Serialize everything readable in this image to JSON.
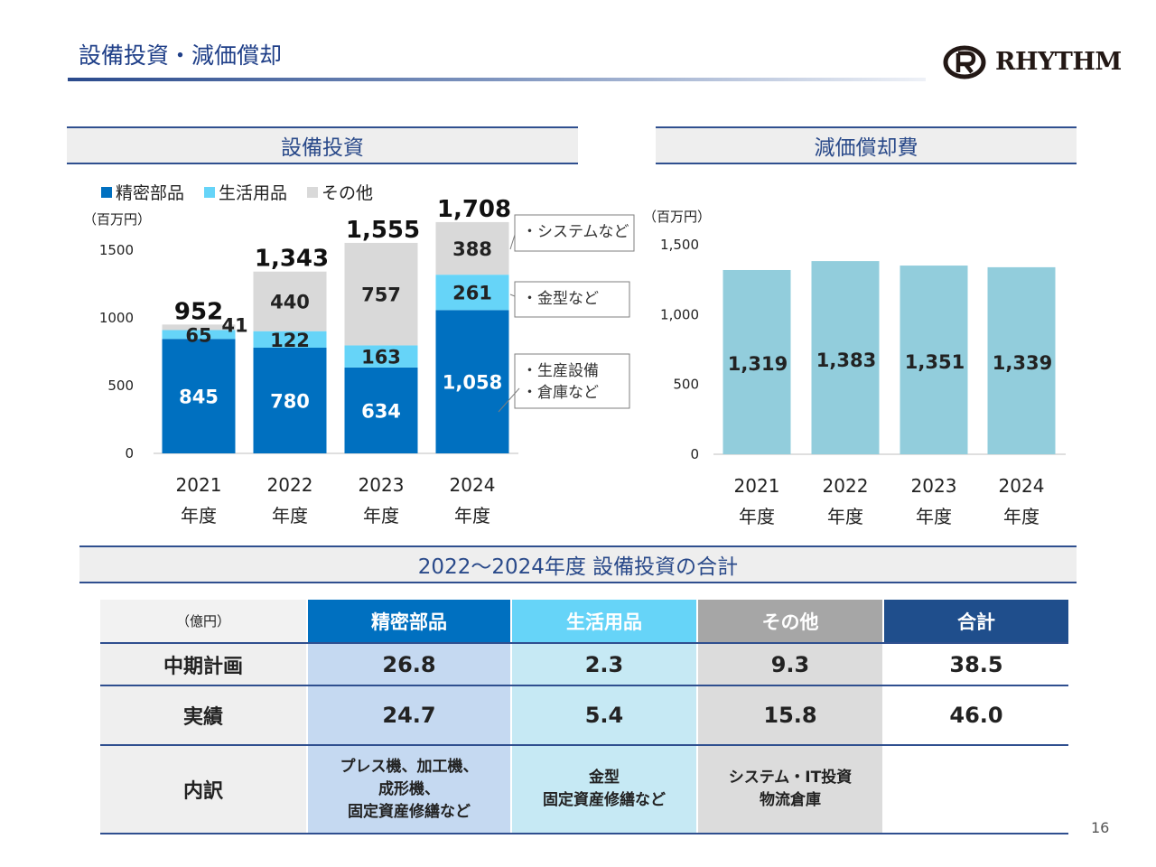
{
  "page": {
    "title": "設備投資・減価償却",
    "logo_text": "RHYTHM",
    "page_number": "16"
  },
  "capex_section": {
    "header": "設備投資",
    "unit": "（百万円）",
    "annotations": [
      "・システムなど",
      "・金型など",
      "・生産設備\n・倉庫など"
    ]
  },
  "depr_section": {
    "header": "減価償却費",
    "unit": "（百万円）"
  },
  "chart_data": [
    {
      "type": "bar",
      "stacked": true,
      "title": "設備投資",
      "ylabel": "（百万円）",
      "categories": [
        "2021\n年度",
        "2022\n年度",
        "2023\n年度",
        "2024\n年度"
      ],
      "series": [
        {
          "name": "精密部品",
          "values": [
            845,
            780,
            634,
            1058
          ],
          "labels": [
            "845",
            "780",
            "634",
            "1,058"
          ],
          "color": "#0070c0"
        },
        {
          "name": "生活用品",
          "values": [
            65,
            122,
            163,
            261
          ],
          "labels": [
            "65",
            "122",
            "163",
            "261"
          ],
          "color": "#66d4f8"
        },
        {
          "name": "その他",
          "values": [
            41,
            440,
            757,
            388
          ],
          "labels": [
            "41",
            "440",
            "757",
            "388"
          ],
          "color": "#d9d9d9"
        }
      ],
      "totals": [
        "952",
        "1,343",
        "1,555",
        "1,708"
      ],
      "ylim": [
        0,
        1500
      ],
      "yticks": [
        0,
        500,
        1000,
        1500
      ],
      "ytick_labels": [
        "0",
        "500",
        "1000",
        "1500"
      ],
      "legend": "top-left"
    },
    {
      "type": "bar",
      "title": "減価償却費",
      "ylabel": "（百万円）",
      "categories": [
        "2021\n年度",
        "2022\n年度",
        "2023\n年度",
        "2024\n年度"
      ],
      "values": [
        1319,
        1383,
        1351,
        1339
      ],
      "labels": [
        "1,319",
        "1,383",
        "1,351",
        "1,339"
      ],
      "color": "#92cddc",
      "ylim": [
        0,
        1500
      ],
      "yticks": [
        0,
        500,
        1000,
        1500
      ],
      "ytick_labels": [
        "0",
        "500",
        "1,000",
        "1,500"
      ]
    }
  ],
  "summary": {
    "header": "2022～2024年度  設備投資の合計",
    "unit": "（億円）",
    "columns": [
      {
        "label": "精密部品",
        "color": "#0070c0"
      },
      {
        "label": "生活用品",
        "color": "#66d4f8"
      },
      {
        "label": "その他",
        "color": "#a6a6a6"
      },
      {
        "label": "合計",
        "color": "#1f4e8c"
      }
    ],
    "rows": [
      {
        "label": "中期計画",
        "values": [
          "26.8",
          "2.3",
          "9.3",
          "38.5"
        ]
      },
      {
        "label": "実績",
        "values": [
          "24.7",
          "5.4",
          "15.8",
          "46.0"
        ]
      },
      {
        "label": "内訳",
        "values": [
          "プレス機、加工機、\n成形機、\n固定資産修繕など",
          "金型\n固定資産修繕など",
          "システム・IT投資\n物流倉庫",
          ""
        ]
      }
    ]
  }
}
